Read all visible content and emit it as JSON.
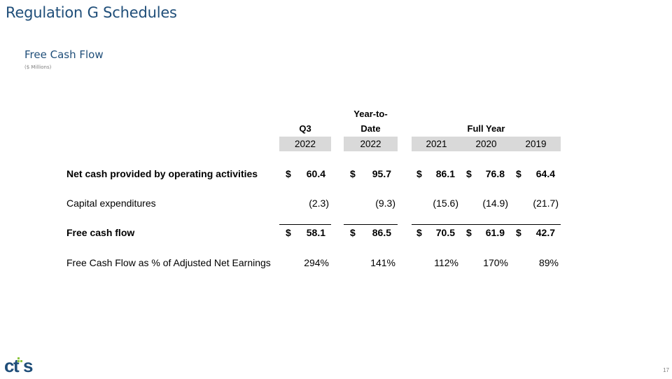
{
  "page_title": "Regulation G Schedules",
  "section_title": "Free Cash Flow",
  "units": "($ Millions)",
  "headers": {
    "q3": "Q3",
    "ytd_line1": "Year-to-",
    "ytd_line2": "Date",
    "full_year": "Full Year",
    "years": [
      "2022",
      "2022",
      "2021",
      "2020",
      "2019"
    ]
  },
  "rows": [
    {
      "label": "Net cash provided by operating activities",
      "bold": true,
      "dollar": [
        "$",
        "$",
        "$",
        "$",
        "$"
      ],
      "values": [
        "60.4",
        "95.7",
        "86.1",
        "76.8",
        "64.4"
      ]
    },
    {
      "label": "Capital expenditures",
      "bold": false,
      "dollar": [
        "",
        "",
        "",
        "",
        ""
      ],
      "values": [
        "(2.3)",
        "(9.3)",
        "(15.6)",
        "(14.9)",
        "(21.7)"
      ]
    },
    {
      "label": "Free cash flow",
      "bold": true,
      "dollar": [
        "$",
        "$",
        "$",
        "$",
        "$"
      ],
      "values": [
        "58.1",
        "86.5",
        "70.5",
        "61.9",
        "42.7"
      ]
    },
    {
      "label": "Free Cash Flow as % of Adjusted Net Earnings",
      "bold": false,
      "dollar": [
        "",
        "",
        "",
        "",
        ""
      ],
      "values": [
        "294%",
        "141%",
        "112%",
        "170%",
        "89%"
      ]
    }
  ],
  "logo_text": "cts",
  "page_number": "17",
  "colors": {
    "title": "#1f4e79",
    "header_band": "#d9d9d9",
    "logo_blue": "#1f4e79",
    "logo_green": "#8dc63f"
  }
}
